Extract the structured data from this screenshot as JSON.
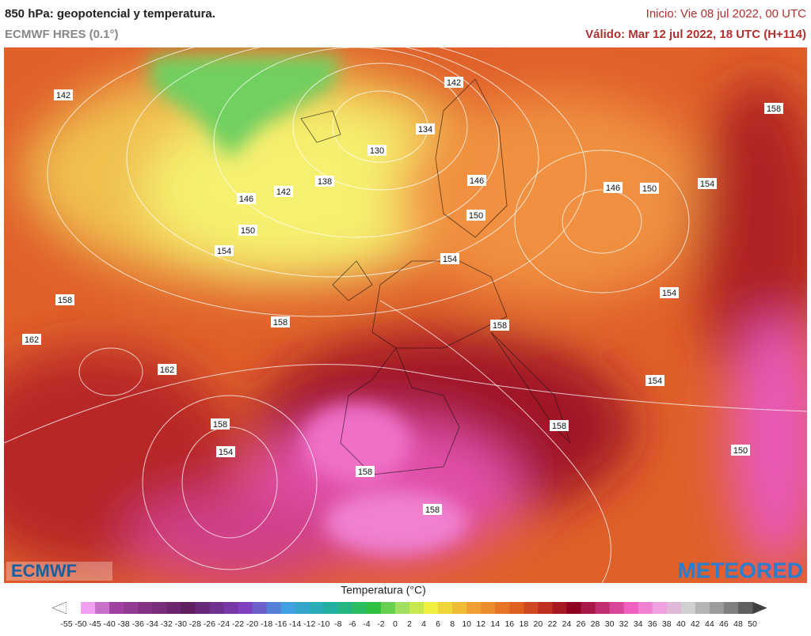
{
  "header": {
    "title": "850 hPa: geopotencial y temperatura.",
    "model": "ECMWF HRES (0.1°)",
    "init": "Inicio: Vie 08 jul 2022, 00 UTC",
    "valid": "Válido: Mar 12 jul 2022, 18 UTC (H+114)"
  },
  "map": {
    "contour_labels": [
      "142",
      "134",
      "130",
      "142",
      "138",
      "142",
      "146",
      "150",
      "154",
      "158",
      "158",
      "162",
      "162",
      "158",
      "154",
      "158",
      "158",
      "146",
      "150",
      "154",
      "158",
      "146",
      "150",
      "154",
      "154",
      "158",
      "154",
      "158",
      "150"
    ]
  },
  "logos": {
    "left": "ECMWF",
    "right": "METEORED"
  },
  "legend": {
    "title": "Temperatura (°C)",
    "ticks": [
      -55,
      -50,
      -45,
      -40,
      -38,
      -36,
      -34,
      -32,
      -30,
      -28,
      -26,
      -24,
      -22,
      -20,
      -18,
      -16,
      -14,
      -12,
      -10,
      -8,
      -6,
      -4,
      -2,
      0,
      2,
      4,
      6,
      8,
      10,
      12,
      14,
      16,
      18,
      20,
      22,
      24,
      26,
      28,
      30,
      32,
      34,
      36,
      38,
      40,
      42,
      44,
      46,
      48,
      50
    ]
  }
}
